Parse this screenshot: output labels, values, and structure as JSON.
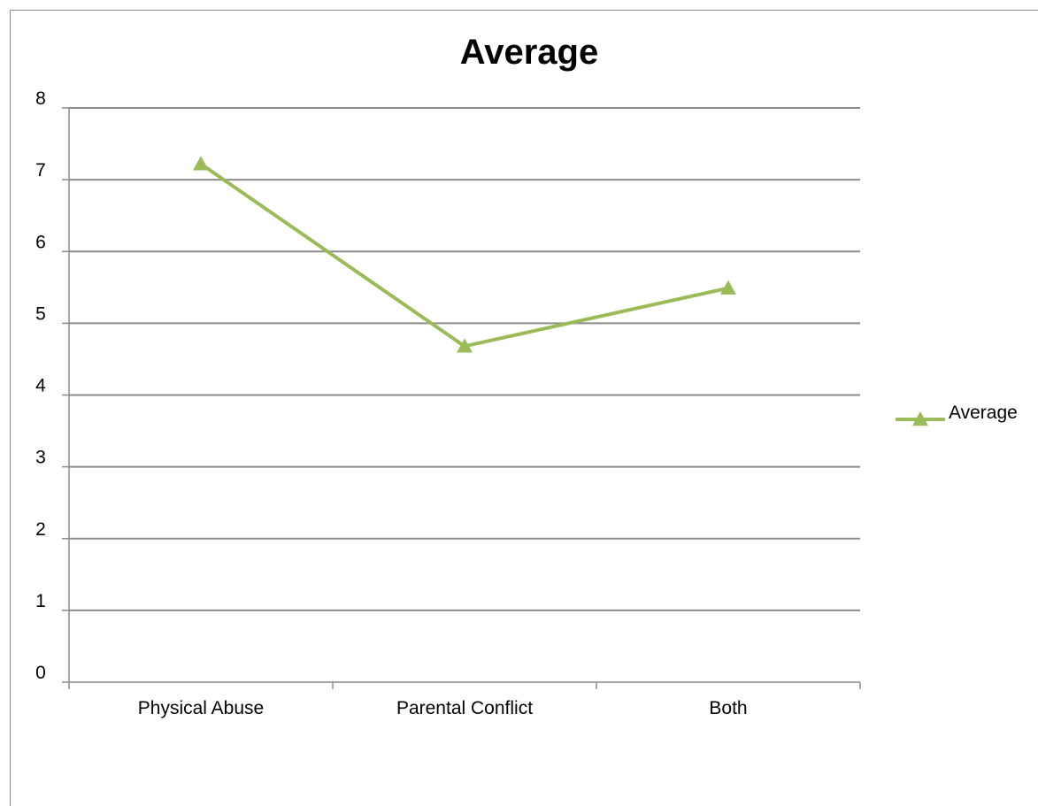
{
  "chart_data": {
    "type": "line",
    "title": "Average",
    "categories": [
      "Physical Abuse",
      "Parental Conflict",
      "Both"
    ],
    "series": [
      {
        "name": "Average",
        "values": [
          7.22,
          4.68,
          5.49
        ],
        "color": "#9bbb59",
        "marker": "triangle"
      }
    ],
    "ylim": [
      0,
      8
    ],
    "y_ticks": [
      "0",
      "1",
      "2",
      "3",
      "4",
      "5",
      "6",
      "7",
      "8"
    ],
    "grid": true,
    "legend": "right"
  }
}
